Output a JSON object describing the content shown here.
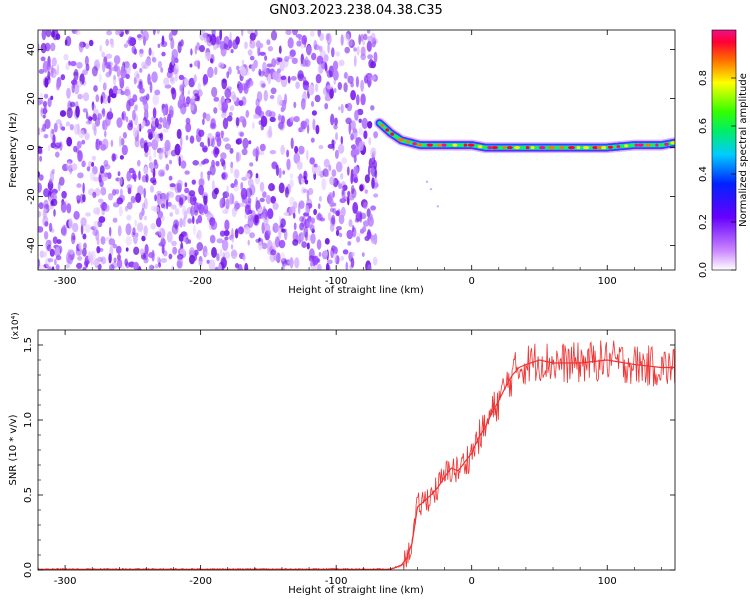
{
  "title": "GN03.2023.238.04.38.C35",
  "chart_data": [
    {
      "type": "heatmap",
      "xlabel": "Height of straight line (km)",
      "ylabel": "Frequency (Hz)",
      "xlim": [
        -320,
        150
      ],
      "ylim": [
        -50,
        48
      ],
      "xticks": [
        -300,
        -200,
        -100,
        0,
        100
      ],
      "yticks": [
        -40,
        -20,
        0,
        20,
        40
      ],
      "noise_region_x": [
        -320,
        -70
      ],
      "ridge": {
        "x": [
          -68,
          -60,
          -52,
          -45,
          -38,
          -30,
          -20,
          -10,
          0,
          10,
          20,
          40,
          60,
          80,
          100,
          120,
          140,
          150
        ],
        "y": [
          10,
          6,
          3,
          2,
          1,
          1,
          1,
          1,
          1,
          0,
          0,
          0,
          0,
          0,
          0,
          1,
          1,
          2
        ]
      },
      "colorbar": {
        "label": "Normalized spectral amplitude",
        "range": [
          0.0,
          1.0
        ],
        "ticks": [
          "0.0",
          "0.2",
          "0.4",
          "0.6",
          "0.8"
        ]
      }
    },
    {
      "type": "line",
      "xlabel": "Height of straight line (km)",
      "ylabel": "SNR (10 * v/v)",
      "y_multiplier": "(x10⁴)",
      "xlim": [
        -320,
        150
      ],
      "ylim": [
        0,
        1.6
      ],
      "xticks": [
        -300,
        -200,
        -100,
        0,
        100
      ],
      "yticks": [
        "0.0",
        "0.5",
        "1.0",
        "1.5"
      ],
      "color": "#ee3333",
      "x": [
        -320,
        -100,
        -60,
        -52,
        -48,
        -44,
        -40,
        -35,
        -30,
        -25,
        -20,
        -15,
        -10,
        -5,
        0,
        5,
        10,
        15,
        20,
        25,
        30,
        35,
        40,
        50,
        60,
        80,
        100,
        120,
        140,
        150
      ],
      "y": [
        0.005,
        0.005,
        0.005,
        0.03,
        0.08,
        0.18,
        0.42,
        0.46,
        0.5,
        0.55,
        0.62,
        0.68,
        0.66,
        0.72,
        0.78,
        0.88,
        0.95,
        1.05,
        1.13,
        1.22,
        1.3,
        1.35,
        1.37,
        1.4,
        1.38,
        1.38,
        1.4,
        1.37,
        1.35,
        1.35
      ]
    }
  ]
}
